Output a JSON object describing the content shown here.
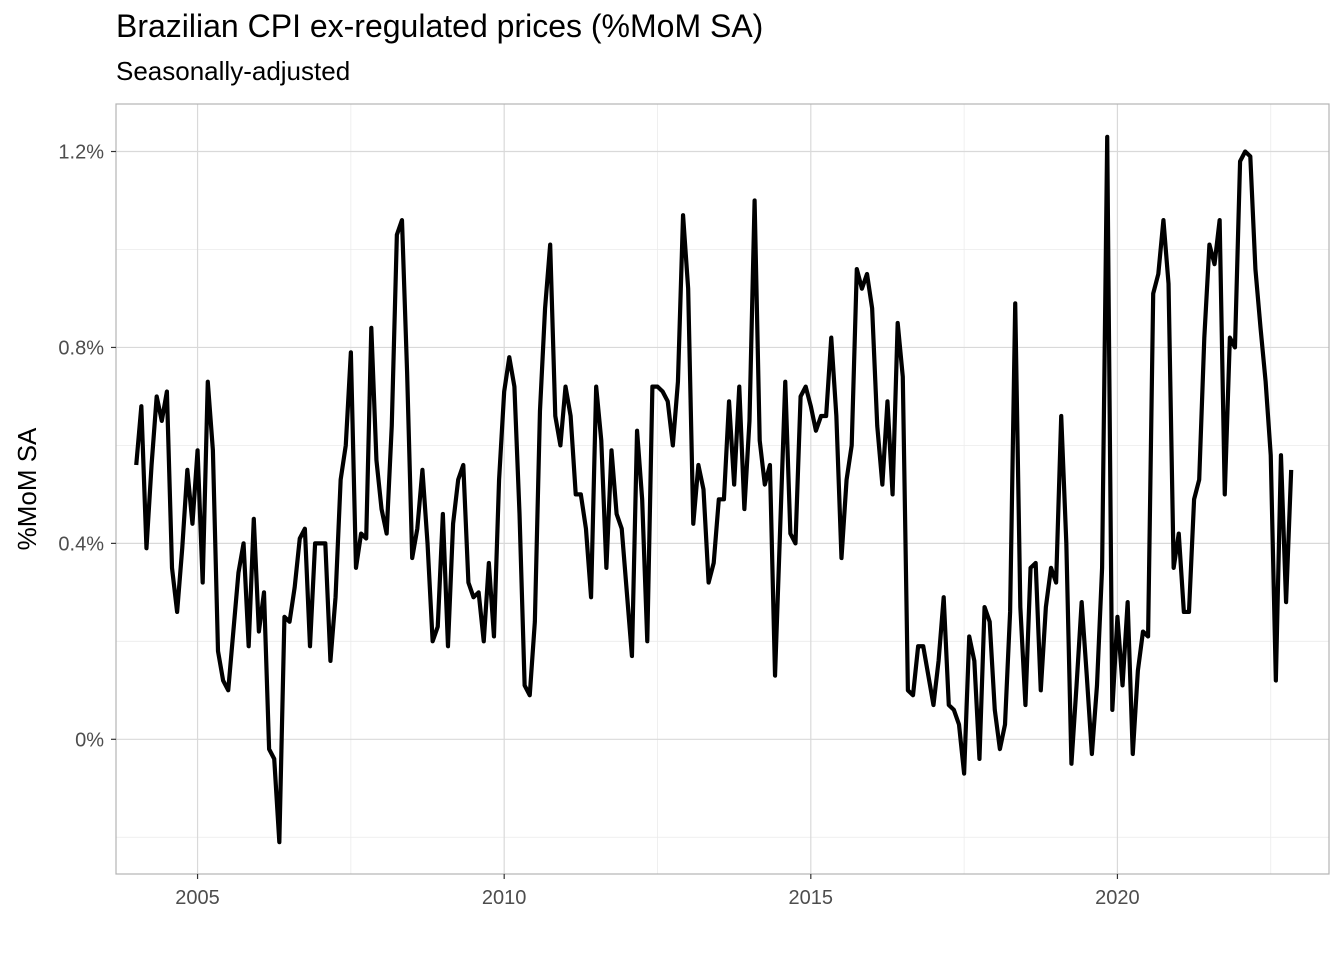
{
  "chart_data": {
    "type": "line",
    "title": "Brazilian CPI ex-regulated prices (%MoM SA)",
    "subtitle": "Seasonally-adjusted",
    "xlabel": "",
    "ylabel": "%MoM SA",
    "xlim": [
      2003.67,
      2023.45
    ],
    "ylim": [
      -0.275,
      1.297
    ],
    "x_ticks": [
      2005,
      2010,
      2015,
      2020
    ],
    "x_tick_labels": [
      "2005",
      "2010",
      "2015",
      "2020"
    ],
    "y_ticks": [
      0,
      0.4,
      0.8,
      1.2
    ],
    "y_tick_labels": [
      "0%",
      "0.4%",
      "0.8%",
      "1.2%"
    ],
    "grid": true,
    "line_color": "#000000",
    "series": [
      {
        "x_start_year": 2004,
        "x_start_month": 1,
        "frequency": "monthly",
        "values": [
          0.56,
          0.68,
          0.39,
          0.56,
          0.7,
          0.65,
          0.71,
          0.35,
          0.26,
          0.39,
          0.55,
          0.44,
          0.59,
          0.32,
          0.73,
          0.59,
          0.18,
          0.12,
          0.1,
          0.22,
          0.34,
          0.4,
          0.19,
          0.45,
          0.22,
          0.3,
          -0.02,
          -0.04,
          -0.21,
          0.25,
          0.24,
          0.31,
          0.41,
          0.43,
          0.19,
          0.4,
          0.4,
          0.4,
          0.16,
          0.29,
          0.53,
          0.6,
          0.79,
          0.35,
          0.42,
          0.41,
          0.84,
          0.57,
          0.47,
          0.42,
          0.64,
          1.03,
          1.06,
          0.75,
          0.37,
          0.43,
          0.55,
          0.4,
          0.2,
          0.23,
          0.46,
          0.19,
          0.44,
          0.53,
          0.56,
          0.32,
          0.29,
          0.3,
          0.2,
          0.36,
          0.21,
          0.53,
          0.71,
          0.78,
          0.72,
          0.46,
          0.11,
          0.09,
          0.24,
          0.67,
          0.88,
          1.01,
          0.66,
          0.6,
          0.72,
          0.66,
          0.5,
          0.5,
          0.43,
          0.29,
          0.72,
          0.61,
          0.35,
          0.59,
          0.46,
          0.43,
          0.3,
          0.17,
          0.63,
          0.49,
          0.2,
          0.72,
          0.72,
          0.71,
          0.69,
          0.6,
          0.73,
          1.07,
          0.92,
          0.44,
          0.56,
          0.51,
          0.32,
          0.36,
          0.49,
          0.49,
          0.69,
          0.52,
          0.72,
          0.47,
          0.65,
          1.1,
          0.61,
          0.52,
          0.56,
          0.13,
          0.43,
          0.73,
          0.42,
          0.4,
          0.7,
          0.72,
          0.68,
          0.63,
          0.66,
          0.66,
          0.82,
          0.66,
          0.37,
          0.53,
          0.6,
          0.96,
          0.92,
          0.95,
          0.88,
          0.64,
          0.52,
          0.69,
          0.5,
          0.85,
          0.74,
          0.1,
          0.09,
          0.19,
          0.19,
          0.13,
          0.07,
          0.16,
          0.29,
          0.07,
          0.06,
          0.03,
          -0.07,
          0.21,
          0.16,
          -0.04,
          0.27,
          0.24,
          0.06,
          -0.02,
          0.03,
          0.26,
          0.89,
          0.27,
          0.07,
          0.35,
          0.36,
          0.1,
          0.27,
          0.35,
          0.32,
          0.66,
          0.4,
          -0.05,
          0.11,
          0.28,
          0.13,
          -0.03,
          0.11,
          0.35,
          1.23,
          0.06,
          0.25,
          0.11,
          0.28,
          -0.03,
          0.14,
          0.22,
          0.21,
          0.91,
          0.95,
          1.06,
          0.93,
          0.35,
          0.42,
          0.26,
          0.26,
          0.49,
          0.53,
          0.82,
          1.01,
          0.97,
          1.06,
          0.5,
          0.82,
          0.8,
          1.18,
          1.2,
          1.19,
          0.96,
          0.84,
          0.73,
          0.58,
          0.12,
          0.58,
          0.28,
          0.55
        ]
      }
    ]
  }
}
